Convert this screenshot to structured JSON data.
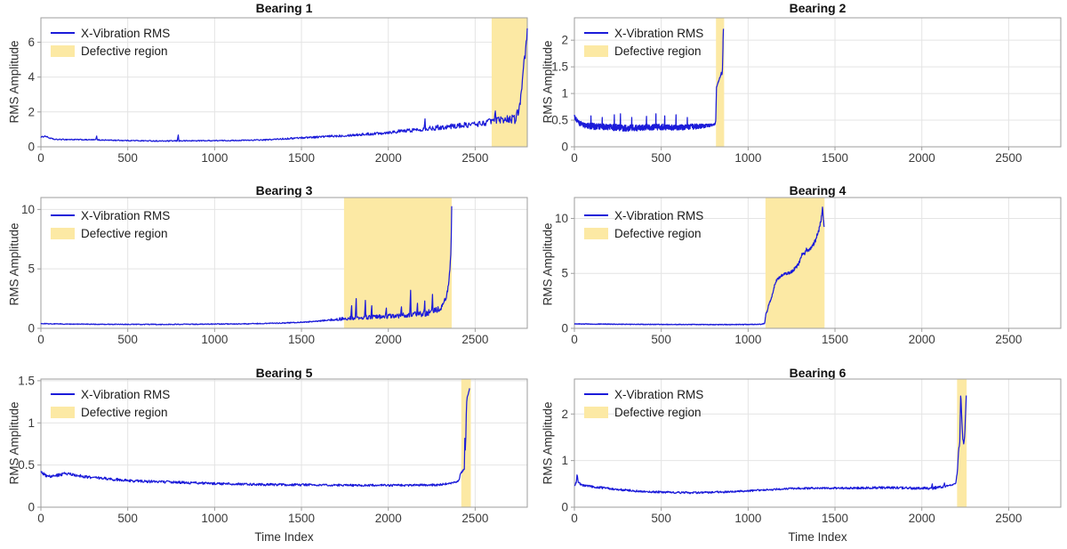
{
  "chart_data": {
    "type": "line",
    "xlabel": "Time Index",
    "ylabel": "RMS Amplitude",
    "legend": {
      "line_label": "X-Vibration RMS",
      "region_label": "Defective region"
    },
    "colors": {
      "line": "#1b1bd9",
      "region": "#FCE9A4",
      "grid": "#e4e4e4",
      "axis": "#9e9e9e",
      "tick_text": "#3b3b3b",
      "title_text": "#111111"
    },
    "panels": [
      {
        "title": "Bearing 1",
        "xlim": [
          0,
          2800
        ],
        "xticks": [
          0,
          500,
          1000,
          1500,
          2000,
          2500
        ],
        "ylim": [
          0,
          7.4
        ],
        "yticks": [
          0,
          2,
          4,
          6
        ],
        "defect_region": [
          2595,
          2800
        ],
        "x_end": 2800,
        "trend": [
          [
            0,
            0.55
          ],
          [
            25,
            0.62
          ],
          [
            50,
            0.5
          ],
          [
            80,
            0.42
          ],
          [
            150,
            0.42
          ],
          [
            300,
            0.4
          ],
          [
            500,
            0.36
          ],
          [
            700,
            0.33
          ],
          [
            900,
            0.35
          ],
          [
            1100,
            0.36
          ],
          [
            1300,
            0.4
          ],
          [
            1500,
            0.52
          ],
          [
            1700,
            0.62
          ],
          [
            1900,
            0.74
          ],
          [
            2100,
            0.92
          ],
          [
            2300,
            1.12
          ],
          [
            2450,
            1.25
          ],
          [
            2550,
            1.35
          ],
          [
            2595,
            1.5
          ],
          [
            2650,
            1.55
          ],
          [
            2700,
            1.62
          ],
          [
            2730,
            1.55
          ],
          [
            2745,
            2.0
          ],
          [
            2760,
            2.6
          ],
          [
            2770,
            3.3
          ],
          [
            2780,
            4.6
          ],
          [
            2790,
            5.4
          ],
          [
            2800,
            6.65
          ]
        ],
        "noise_amp": [
          [
            0,
            0.03
          ],
          [
            1200,
            0.03
          ],
          [
            1500,
            0.05
          ],
          [
            1800,
            0.07
          ],
          [
            2100,
            0.1
          ],
          [
            2300,
            0.14
          ],
          [
            2500,
            0.16
          ],
          [
            2650,
            0.18
          ],
          [
            2745,
            0.3
          ],
          [
            2800,
            0.35
          ]
        ],
        "spikes": [
          [
            320,
            0.62
          ],
          [
            790,
            0.68
          ],
          [
            2210,
            1.6
          ],
          [
            2615,
            2.05
          ]
        ]
      },
      {
        "title": "Bearing 2",
        "xlim": [
          0,
          2800
        ],
        "xticks": [
          0,
          500,
          1000,
          1500,
          2000,
          2500
        ],
        "ylim": [
          0,
          2.42
        ],
        "yticks": [
          0,
          0.5,
          1,
          1.5,
          2
        ],
        "defect_region": [
          815,
          862
        ],
        "x_end": 858,
        "trend": [
          [
            0,
            0.56
          ],
          [
            12,
            0.5
          ],
          [
            30,
            0.44
          ],
          [
            60,
            0.4
          ],
          [
            120,
            0.38
          ],
          [
            200,
            0.37
          ],
          [
            300,
            0.35
          ],
          [
            400,
            0.36
          ],
          [
            500,
            0.37
          ],
          [
            600,
            0.36
          ],
          [
            680,
            0.38
          ],
          [
            750,
            0.39
          ],
          [
            795,
            0.41
          ],
          [
            810,
            0.43
          ],
          [
            814,
            0.5
          ],
          [
            818,
            1.12
          ],
          [
            824,
            1.18
          ],
          [
            832,
            1.25
          ],
          [
            840,
            1.32
          ],
          [
            846,
            1.4
          ],
          [
            849,
            1.35
          ],
          [
            852,
            1.42
          ],
          [
            854,
            1.7
          ],
          [
            856,
            2.0
          ],
          [
            858,
            2.22
          ]
        ],
        "noise_amp": [
          [
            0,
            0.04
          ],
          [
            100,
            0.06
          ],
          [
            400,
            0.06
          ],
          [
            700,
            0.05
          ],
          [
            800,
            0.02
          ],
          [
            814,
            0.01
          ],
          [
            858,
            0.01
          ]
        ],
        "spikes": [
          [
            95,
            0.58
          ],
          [
            160,
            0.55
          ],
          [
            230,
            0.6
          ],
          [
            265,
            0.62
          ],
          [
            330,
            0.55
          ],
          [
            415,
            0.57
          ],
          [
            470,
            0.62
          ],
          [
            520,
            0.58
          ],
          [
            585,
            0.6
          ],
          [
            650,
            0.55
          ]
        ]
      },
      {
        "title": "Bearing 3",
        "xlim": [
          0,
          2800
        ],
        "xticks": [
          0,
          500,
          1000,
          1500,
          2000,
          2500
        ],
        "ylim": [
          0,
          11
        ],
        "yticks": [
          0,
          5,
          10
        ],
        "defect_region": [
          1745,
          2365
        ],
        "x_end": 2365,
        "trend": [
          [
            0,
            0.4
          ],
          [
            150,
            0.36
          ],
          [
            400,
            0.34
          ],
          [
            700,
            0.33
          ],
          [
            1000,
            0.36
          ],
          [
            1200,
            0.38
          ],
          [
            1400,
            0.45
          ],
          [
            1550,
            0.55
          ],
          [
            1650,
            0.68
          ],
          [
            1745,
            0.82
          ],
          [
            1800,
            0.88
          ],
          [
            1900,
            0.95
          ],
          [
            2000,
            1.0
          ],
          [
            2100,
            1.1
          ],
          [
            2180,
            1.2
          ],
          [
            2250,
            1.35
          ],
          [
            2290,
            1.6
          ],
          [
            2315,
            2.0
          ],
          [
            2330,
            2.5
          ],
          [
            2342,
            3.2
          ],
          [
            2350,
            4.2
          ],
          [
            2356,
            5.2
          ],
          [
            2360,
            6.4
          ],
          [
            2363,
            8.2
          ],
          [
            2365,
            10.3
          ]
        ],
        "noise_amp": [
          [
            0,
            0.03
          ],
          [
            1600,
            0.04
          ],
          [
            1745,
            0.15
          ],
          [
            1900,
            0.18
          ],
          [
            2100,
            0.2
          ],
          [
            2250,
            0.28
          ],
          [
            2320,
            0.3
          ],
          [
            2365,
            0.15
          ]
        ],
        "spikes": [
          [
            1788,
            1.9
          ],
          [
            1815,
            2.5
          ],
          [
            1868,
            2.35
          ],
          [
            1905,
            1.9
          ],
          [
            1990,
            1.7
          ],
          [
            2075,
            1.8
          ],
          [
            2128,
            3.2
          ],
          [
            2168,
            2.1
          ],
          [
            2210,
            2.3
          ],
          [
            2255,
            2.85
          ]
        ]
      },
      {
        "title": "Bearing 4",
        "xlim": [
          0,
          2800
        ],
        "xticks": [
          0,
          500,
          1000,
          1500,
          2000,
          2500
        ],
        "ylim": [
          0,
          11.9
        ],
        "yticks": [
          0,
          5,
          10
        ],
        "defect_region": [
          1100,
          1440
        ],
        "x_end": 1438,
        "trend": [
          [
            0,
            0.4
          ],
          [
            200,
            0.38
          ],
          [
            400,
            0.36
          ],
          [
            600,
            0.35
          ],
          [
            800,
            0.34
          ],
          [
            1000,
            0.35
          ],
          [
            1075,
            0.37
          ],
          [
            1095,
            0.45
          ],
          [
            1102,
            1.3
          ],
          [
            1110,
            1.55
          ],
          [
            1118,
            2.1
          ],
          [
            1128,
            2.5
          ],
          [
            1140,
            3.1
          ],
          [
            1152,
            3.9
          ],
          [
            1162,
            4.35
          ],
          [
            1175,
            4.55
          ],
          [
            1190,
            4.75
          ],
          [
            1210,
            4.95
          ],
          [
            1230,
            5.0
          ],
          [
            1250,
            5.15
          ],
          [
            1270,
            5.45
          ],
          [
            1285,
            5.7
          ],
          [
            1300,
            6.2
          ],
          [
            1312,
            6.85
          ],
          [
            1322,
            6.7
          ],
          [
            1335,
            7.15
          ],
          [
            1348,
            7.0
          ],
          [
            1360,
            7.3
          ],
          [
            1375,
            7.6
          ],
          [
            1388,
            8.0
          ],
          [
            1398,
            8.5
          ],
          [
            1408,
            9.0
          ],
          [
            1418,
            9.7
          ],
          [
            1424,
            10.3
          ],
          [
            1428,
            11.0
          ],
          [
            1433,
            9.8
          ],
          [
            1438,
            9.4
          ]
        ],
        "noise_amp": [
          [
            0,
            0.03
          ],
          [
            1090,
            0.03
          ],
          [
            1150,
            0.1
          ],
          [
            1300,
            0.15
          ],
          [
            1438,
            0.18
          ]
        ],
        "spikes": []
      },
      {
        "title": "Bearing 5",
        "xlim": [
          0,
          2800
        ],
        "xticks": [
          0,
          500,
          1000,
          1500,
          2000,
          2500
        ],
        "ylim": [
          0,
          1.52
        ],
        "yticks": [
          0,
          0.5,
          1,
          1.5
        ],
        "defect_region": [
          2420,
          2475
        ],
        "x_end": 2468,
        "trend": [
          [
            0,
            0.42
          ],
          [
            25,
            0.38
          ],
          [
            60,
            0.36
          ],
          [
            100,
            0.38
          ],
          [
            140,
            0.4
          ],
          [
            180,
            0.39
          ],
          [
            250,
            0.36
          ],
          [
            330,
            0.35
          ],
          [
            420,
            0.33
          ],
          [
            550,
            0.31
          ],
          [
            700,
            0.3
          ],
          [
            850,
            0.29
          ],
          [
            1000,
            0.28
          ],
          [
            1200,
            0.27
          ],
          [
            1500,
            0.265
          ],
          [
            1800,
            0.26
          ],
          [
            2100,
            0.26
          ],
          [
            2280,
            0.265
          ],
          [
            2350,
            0.28
          ],
          [
            2395,
            0.3
          ],
          [
            2408,
            0.32
          ],
          [
            2415,
            0.4
          ],
          [
            2425,
            0.42
          ],
          [
            2432,
            0.44
          ],
          [
            2438,
            0.46
          ],
          [
            2441,
            0.88
          ],
          [
            2444,
            0.62
          ],
          [
            2448,
            1.05
          ],
          [
            2452,
            1.28
          ],
          [
            2458,
            1.33
          ],
          [
            2463,
            1.36
          ],
          [
            2468,
            1.4
          ]
        ],
        "noise_amp": [
          [
            0,
            0.018
          ],
          [
            1000,
            0.014
          ],
          [
            2300,
            0.012
          ],
          [
            2410,
            0.008
          ],
          [
            2468,
            0.01
          ]
        ],
        "spikes": []
      },
      {
        "title": "Bearing 6",
        "xlim": [
          0,
          2800
        ],
        "xticks": [
          0,
          500,
          1000,
          1500,
          2000,
          2500
        ],
        "ylim": [
          0,
          2.75
        ],
        "yticks": [
          0,
          1,
          2
        ],
        "defect_region": [
          2203,
          2258
        ],
        "x_end": 2256,
        "trend": [
          [
            0,
            0.48
          ],
          [
            10,
            0.52
          ],
          [
            16,
            0.7
          ],
          [
            24,
            0.52
          ],
          [
            50,
            0.47
          ],
          [
            90,
            0.45
          ],
          [
            150,
            0.42
          ],
          [
            250,
            0.38
          ],
          [
            380,
            0.34
          ],
          [
            520,
            0.32
          ],
          [
            650,
            0.31
          ],
          [
            800,
            0.32
          ],
          [
            950,
            0.34
          ],
          [
            1100,
            0.37
          ],
          [
            1250,
            0.4
          ],
          [
            1400,
            0.41
          ],
          [
            1600,
            0.41
          ],
          [
            1800,
            0.42
          ],
          [
            1950,
            0.41
          ],
          [
            2050,
            0.4
          ],
          [
            2120,
            0.44
          ],
          [
            2170,
            0.47
          ],
          [
            2195,
            0.52
          ],
          [
            2205,
            0.75
          ],
          [
            2212,
            1.25
          ],
          [
            2218,
            1.35
          ],
          [
            2224,
            2.5
          ],
          [
            2230,
            1.9
          ],
          [
            2236,
            1.45
          ],
          [
            2242,
            1.35
          ],
          [
            2247,
            1.55
          ],
          [
            2251,
            1.9
          ],
          [
            2256,
            2.4
          ]
        ],
        "noise_amp": [
          [
            0,
            0.025
          ],
          [
            600,
            0.02
          ],
          [
            1500,
            0.02
          ],
          [
            2100,
            0.03
          ],
          [
            2200,
            0.015
          ],
          [
            2256,
            0.02
          ]
        ],
        "spikes": [
          [
            2060,
            0.5
          ],
          [
            2130,
            0.52
          ]
        ]
      }
    ]
  }
}
